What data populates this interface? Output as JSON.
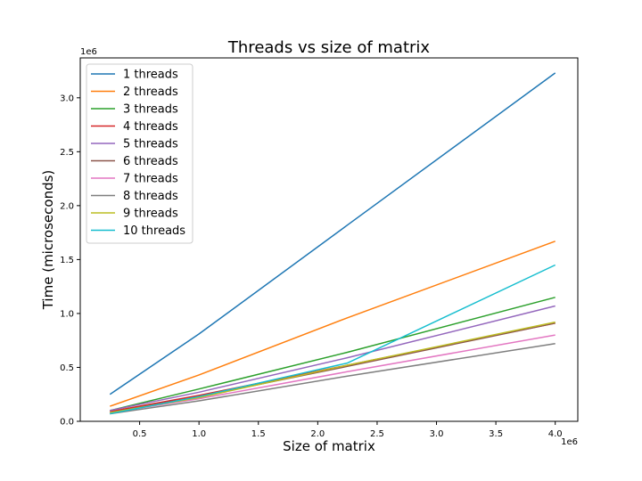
{
  "chart_data": {
    "type": "line",
    "title": "Threads vs size of matrix",
    "xlabel": "Size of matrix",
    "ylabel": "Time (microseconds)",
    "x_multiplier": "1e6",
    "y_multiplier": "1e6",
    "xlim": [
      0.0,
      4.19
    ],
    "ylim": [
      -0.0,
      3.37
    ],
    "x_ticks": [
      0.5,
      1.0,
      1.5,
      2.0,
      2.5,
      3.0,
      3.5,
      4.0
    ],
    "x_tick_labels": [
      "0.5",
      "1.0",
      "1.5",
      "2.0",
      "2.5",
      "3.0",
      "3.5",
      "4.0"
    ],
    "y_ticks": [
      0.0,
      0.5,
      1.0,
      1.5,
      2.0,
      2.5,
      3.0
    ],
    "y_tick_labels": [
      "0.0",
      "0.5",
      "1.0",
      "1.5",
      "2.0",
      "2.5",
      "3.0"
    ],
    "grid": false,
    "legend_position": "upper-left",
    "x": [
      0.25,
      1.0,
      2.25,
      4.0
    ],
    "series": [
      {
        "name": "1 threads",
        "color": "#1f77b4",
        "values": [
          0.25,
          0.81,
          1.82,
          3.23
        ]
      },
      {
        "name": "2 threads",
        "color": "#ff7f0e",
        "values": [
          0.14,
          0.43,
          0.96,
          1.67
        ]
      },
      {
        "name": "3 threads",
        "color": "#2ca02c",
        "values": [
          0.1,
          0.3,
          0.64,
          1.15
        ]
      },
      {
        "name": "4 threads",
        "color": "#d62728",
        "values": [
          0.09,
          0.24,
          0.52,
          0.91
        ]
      },
      {
        "name": "5 threads",
        "color": "#9467bd",
        "values": [
          0.1,
          0.27,
          0.59,
          1.07
        ]
      },
      {
        "name": "6 threads",
        "color": "#8c564b",
        "values": [
          0.08,
          0.23,
          0.51,
          0.91
        ]
      },
      {
        "name": "7 threads",
        "color": "#e377c2",
        "values": [
          0.08,
          0.21,
          0.46,
          0.8
        ]
      },
      {
        "name": "8 threads",
        "color": "#7f7f7f",
        "values": [
          0.07,
          0.19,
          0.42,
          0.72
        ]
      },
      {
        "name": "9 threads",
        "color": "#bcbd22",
        "values": [
          0.08,
          0.22,
          0.52,
          0.92
        ]
      },
      {
        "name": "10 threads",
        "color": "#17becf",
        "values": [
          0.07,
          0.23,
          0.54,
          1.45
        ]
      }
    ]
  }
}
